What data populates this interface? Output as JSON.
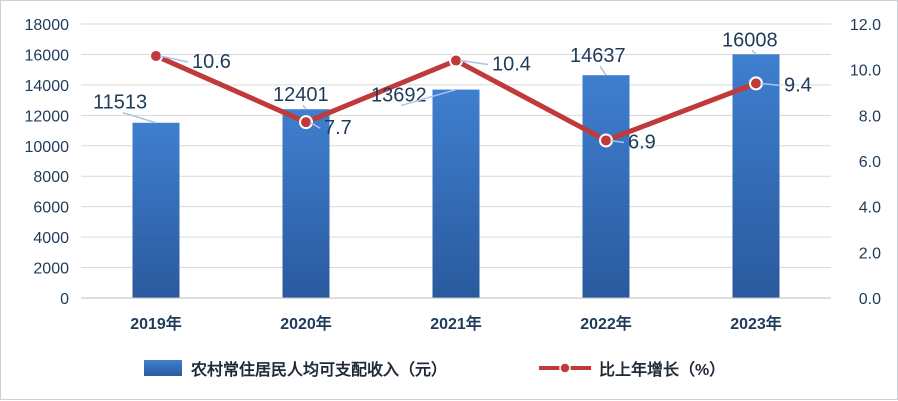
{
  "chart_data": {
    "type": "bar+line",
    "categories": [
      "2019年",
      "2020年",
      "2021年",
      "2022年",
      "2023年"
    ],
    "series": [
      {
        "name": "农村常住居民人均可支配收入（元）",
        "type": "bar",
        "axis": "left",
        "values": [
          11513,
          12401,
          13692,
          14637,
          16008
        ],
        "color": "#3b74c0"
      },
      {
        "name": "比上年增长（%）",
        "type": "line",
        "axis": "right",
        "values": [
          10.6,
          7.7,
          10.4,
          6.9,
          9.4
        ],
        "color": "#c0393b"
      }
    ],
    "y_left": {
      "min": 0,
      "max": 18000,
      "step": 2000,
      "ticks": [
        "0",
        "2000",
        "4000",
        "6000",
        "8000",
        "10000",
        "12000",
        "14000",
        "16000",
        "18000"
      ]
    },
    "y_right": {
      "min": 0,
      "max": 12,
      "step": 2,
      "ticks": [
        "0.0",
        "2.0",
        "4.0",
        "6.0",
        "8.0",
        "10.0",
        "12.0"
      ]
    },
    "bar_labels": [
      "11513",
      "12401",
      "13692",
      "14637",
      "16008"
    ],
    "line_labels": [
      "10.6",
      "7.7",
      "10.4",
      "6.9",
      "9.4"
    ],
    "legend": {
      "position": "bottom"
    },
    "grid": true
  }
}
